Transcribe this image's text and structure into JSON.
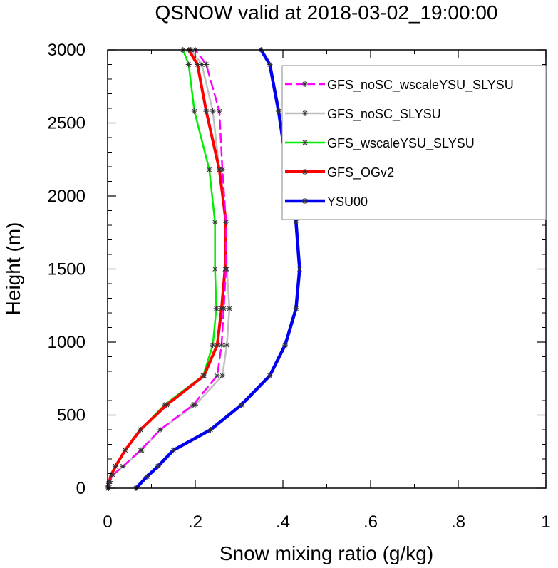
{
  "chart_data": {
    "type": "line",
    "title": "QSNOW valid at 2018-03-02_19:00:00",
    "xlabel": "Snow mixing ratio (g/kg)",
    "ylabel": "Height (m)",
    "xlim": [
      0,
      1
    ],
    "ylim": [
      0,
      3000
    ],
    "xticks": [
      0,
      0.2,
      0.4,
      0.6,
      0.8,
      1
    ],
    "xtick_labels": [
      "0",
      ".2",
      ".4",
      ".6",
      ".8",
      "1"
    ],
    "yticks": [
      0,
      500,
      1000,
      1500,
      2000,
      2500,
      3000
    ],
    "ytick_labels": [
      "0",
      "500",
      "1000",
      "1500",
      "2000",
      "2500",
      "3000"
    ],
    "grid": false,
    "legend_position": "top-right",
    "series": [
      {
        "name": "GFS_noSC_wscaleYSU_SLYSU",
        "color": "#ff00ff",
        "style": "dashed",
        "width": 2.5,
        "markers": true,
        "x": [
          0.002,
          0.003,
          0.005,
          0.012,
          0.035,
          0.075,
          0.12,
          0.195,
          0.25,
          0.26,
          0.265,
          0.27,
          0.27,
          0.262,
          0.255,
          0.225,
          0.2
        ],
        "y": [
          0,
          20,
          45,
          90,
          150,
          260,
          400,
          570,
          770,
          980,
          1230,
          1500,
          1820,
          2180,
          2580,
          2900,
          3000
        ]
      },
      {
        "name": "GFS_noSC_SLYSU",
        "color": "#c0c0c0",
        "style": "solid",
        "width": 2.5,
        "markers": true,
        "x": [
          0.002,
          0.003,
          0.005,
          0.012,
          0.035,
          0.078,
          0.12,
          0.2,
          0.262,
          0.272,
          0.278,
          0.272,
          0.27,
          0.255,
          0.24,
          0.215,
          0.19
        ],
        "y": [
          0,
          20,
          45,
          90,
          150,
          260,
          400,
          570,
          770,
          980,
          1230,
          1500,
          1820,
          2180,
          2580,
          2900,
          3000
        ]
      },
      {
        "name": "GFS_wscaleYSU_SLYSU",
        "color": "#00ee00",
        "style": "solid",
        "width": 2.5,
        "markers": true,
        "x": [
          0.001,
          0.002,
          0.004,
          0.008,
          0.018,
          0.04,
          0.075,
          0.13,
          0.218,
          0.24,
          0.248,
          0.245,
          0.245,
          0.232,
          0.198,
          0.185,
          0.172
        ],
        "y": [
          0,
          20,
          45,
          90,
          150,
          260,
          400,
          570,
          770,
          980,
          1230,
          1500,
          1820,
          2180,
          2580,
          2900,
          3000
        ]
      },
      {
        "name": "GFS_OGv2",
        "color": "#ff0000",
        "style": "solid",
        "width": 4,
        "markers": true,
        "x": [
          0.001,
          0.002,
          0.004,
          0.008,
          0.018,
          0.04,
          0.075,
          0.135,
          0.22,
          0.25,
          0.26,
          0.268,
          0.27,
          0.255,
          0.225,
          0.205,
          0.185
        ],
        "y": [
          0,
          20,
          45,
          90,
          150,
          260,
          400,
          570,
          770,
          980,
          1230,
          1500,
          1820,
          2180,
          2580,
          2900,
          3000
        ]
      },
      {
        "name": "YSU00",
        "color": "#0000ee",
        "style": "solid",
        "width": 4.5,
        "markers": true,
        "x": [
          0.065,
          0.09,
          0.115,
          0.15,
          0.235,
          0.305,
          0.37,
          0.405,
          0.43,
          0.438,
          0.43,
          0.41,
          0.39,
          0.37,
          0.35
        ],
        "y": [
          0,
          80,
          150,
          260,
          400,
          570,
          770,
          980,
          1230,
          1500,
          1820,
          2180,
          2580,
          2900,
          3000
        ]
      }
    ]
  }
}
